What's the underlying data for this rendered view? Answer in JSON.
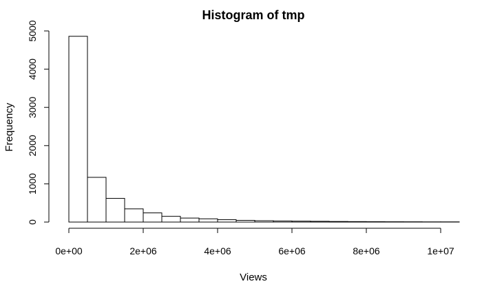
{
  "chart_data": {
    "type": "bar",
    "title": "Histogram of tmp",
    "xlabel": "Views",
    "ylabel": "Frequency",
    "bin_width": 500000,
    "bins_start": 0,
    "values": [
      4860,
      1170,
      620,
      345,
      240,
      150,
      105,
      85,
      62,
      45,
      35,
      28,
      24,
      20,
      15,
      12,
      10,
      8,
      7,
      5,
      5
    ],
    "xlim": [
      0,
      10500000
    ],
    "ylim": [
      0,
      5000
    ],
    "x_ticks": [
      0,
      2000000,
      4000000,
      6000000,
      8000000,
      10000000
    ],
    "x_tick_labels": [
      "0e+00",
      "2e+06",
      "4e+06",
      "6e+06",
      "8e+06",
      "1e+07"
    ],
    "y_ticks": [
      0,
      1000,
      2000,
      3000,
      4000,
      5000
    ],
    "y_tick_labels": [
      "0",
      "1000",
      "2000",
      "3000",
      "4000",
      "5000"
    ],
    "grid": false,
    "legend": "none"
  }
}
